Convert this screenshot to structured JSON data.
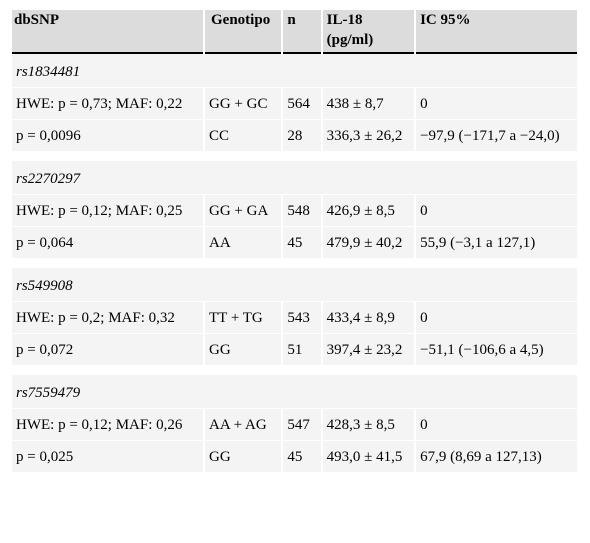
{
  "headers": [
    "dbSNP",
    "Genotipo",
    "n",
    "IL-18\n(pg/ml)",
    "IC 95%"
  ],
  "groups": [
    {
      "snp": "rs1834481",
      "rows": [
        {
          "dbsnp": " HWE: p = 0,73; MAF: 0,22",
          "genotipo": "GG + GC",
          "n": "564",
          "il18": "438 ± 8,7",
          "ic": "0"
        },
        {
          "dbsnp": " p = 0,0096",
          "genotipo": "CC",
          "n": "28",
          "il18": "336,3 ± 26,2",
          "ic": "−97,9 (−171,7 a −24,0)"
        }
      ]
    },
    {
      "snp": "rs2270297",
      "rows": [
        {
          "dbsnp": " HWE: p = 0,12; MAF: 0,25",
          "genotipo": "GG + GA",
          "n": "548",
          "il18": "426,9 ± 8,5",
          "ic": "0"
        },
        {
          "dbsnp": " p = 0,064",
          "genotipo": "AA",
          "n": "45",
          "il18": "479,9 ± 40,2",
          "ic": "55,9 (−3,1 a 127,1)"
        }
      ]
    },
    {
      "snp": "rs549908",
      "rows": [
        {
          "dbsnp": " HWE: p = 0,2; MAF: 0,32",
          "genotipo": "TT + TG",
          "n": "543",
          "il18": "433,4 ± 8,9",
          "ic": "0"
        },
        {
          "dbsnp": " p = 0,072",
          "genotipo": "GG",
          "n": "51",
          "il18": "397,4 ± 23,2",
          "ic": "−51,1 (−106,6 a 4,5)"
        }
      ]
    },
    {
      "snp": "rs7559479",
      "rows": [
        {
          "dbsnp": " HWE: p = 0,12; MAF: 0,26",
          "genotipo": "AA + AG",
          "n": "547",
          "il18": "428,3 ± 8,5",
          "ic": "0"
        },
        {
          "dbsnp": " p = 0,025",
          "genotipo": "GG",
          "n": "45",
          "il18": "493,0 ± 41,5",
          "ic": "67,9 (8,69 a 127,13)"
        }
      ]
    }
  ]
}
